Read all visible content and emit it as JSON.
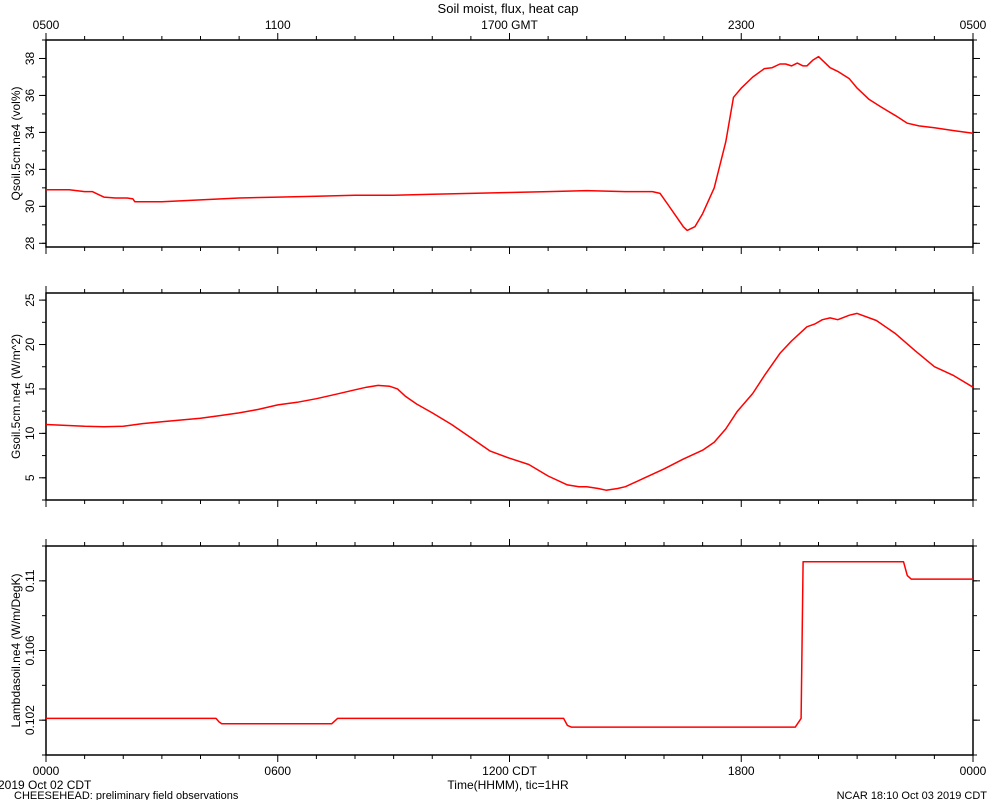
{
  "chart_data": {
    "type": "line",
    "title": "Soil moist, flux, heat cap",
    "top_axis": {
      "ticks": [
        {
          "hour": 0,
          "label": "0500"
        },
        {
          "hour": 6,
          "label": "1100"
        },
        {
          "hour": 12,
          "label": "1700 GMT"
        },
        {
          "hour": 18,
          "label": "2300"
        },
        {
          "hour": 24,
          "label": "0500"
        }
      ]
    },
    "bottom_axis": {
      "ticks": [
        {
          "hour": 0,
          "label": "0000"
        },
        {
          "hour": 6,
          "label": "0600"
        },
        {
          "hour": 12,
          "label": "1200 CDT"
        },
        {
          "hour": 18,
          "label": "1800"
        },
        {
          "hour": 24,
          "label": "0000"
        }
      ],
      "xlabel": "Time(HHMM), tic=1HR"
    },
    "xlim_hours": [
      0,
      24
    ],
    "footer": {
      "left_date": "2019 Oct 02 CDT",
      "left_note": "CHEESEHEAD: preliminary field observations",
      "right_note": "NCAR 18:10 Oct 03 2019 CDT"
    },
    "line_color": "#ff0000",
    "panels": [
      {
        "ylabel": "Qsoil.5cm.ne4 (vol%)",
        "ylim": [
          27.8,
          39
        ],
        "yticks": [
          28,
          30,
          32,
          34,
          36,
          38
        ],
        "x": [
          0,
          0.6,
          1.0,
          1.2,
          1.4,
          1.5,
          1.8,
          2.1,
          2.25,
          2.3,
          2.6,
          3,
          4,
          5,
          6,
          7,
          8,
          9,
          10,
          11,
          12,
          13,
          14,
          15,
          15.7,
          15.9,
          16.1,
          16.3,
          16.5,
          16.6,
          16.8,
          17.0,
          17.3,
          17.6,
          17.8,
          18.0,
          18.3,
          18.6,
          18.8,
          19.0,
          19.15,
          19.3,
          19.45,
          19.6,
          19.7,
          19.85,
          20.0,
          20.1,
          20.3,
          20.5,
          20.8,
          21.0,
          21.3,
          21.6,
          22.0,
          22.3,
          22.6,
          23.0,
          23.5,
          24.0
        ],
        "y": [
          30.9,
          30.9,
          30.8,
          30.8,
          30.6,
          30.5,
          30.45,
          30.45,
          30.4,
          30.25,
          30.25,
          30.25,
          30.35,
          30.45,
          30.5,
          30.55,
          30.6,
          30.6,
          30.65,
          30.7,
          30.75,
          30.8,
          30.85,
          30.8,
          30.8,
          30.7,
          30.1,
          29.5,
          28.9,
          28.7,
          28.9,
          29.6,
          31.0,
          33.5,
          35.9,
          36.4,
          37.0,
          37.45,
          37.5,
          37.7,
          37.7,
          37.6,
          37.75,
          37.6,
          37.6,
          37.9,
          38.1,
          37.9,
          37.5,
          37.3,
          36.9,
          36.4,
          35.8,
          35.4,
          34.9,
          34.5,
          34.35,
          34.25,
          34.1,
          33.95
        ]
      },
      {
        "ylabel": "Gsoil.5cm.ne4 (W/m^2)",
        "ylim": [
          2.5,
          25.8
        ],
        "yticks": [
          5,
          10,
          15,
          20,
          25
        ],
        "x": [
          0,
          0.5,
          1.0,
          1.5,
          2.0,
          2.5,
          3.0,
          3.5,
          4.0,
          4.5,
          5.0,
          5.5,
          6.0,
          6.5,
          7.0,
          7.5,
          8.0,
          8.3,
          8.6,
          8.9,
          9.1,
          9.3,
          9.6,
          10.0,
          10.5,
          11.0,
          11.5,
          12.0,
          12.5,
          13.0,
          13.5,
          13.8,
          14.0,
          14.3,
          14.5,
          14.8,
          15.0,
          15.5,
          16.0,
          16.5,
          17.0,
          17.3,
          17.6,
          17.9,
          18.0,
          18.3,
          18.6,
          19.0,
          19.3,
          19.5,
          19.7,
          19.9,
          20.1,
          20.3,
          20.5,
          20.8,
          21.0,
          21.5,
          22.0,
          22.5,
          23.0,
          23.5,
          24.0
        ],
        "y": [
          11.0,
          10.9,
          10.8,
          10.75,
          10.8,
          11.1,
          11.3,
          11.5,
          11.7,
          12.0,
          12.3,
          12.7,
          13.2,
          13.5,
          13.9,
          14.4,
          14.9,
          15.2,
          15.4,
          15.3,
          15.0,
          14.2,
          13.3,
          12.3,
          11.0,
          9.5,
          8.0,
          7.2,
          6.5,
          5.2,
          4.2,
          4.0,
          4.0,
          3.8,
          3.6,
          3.8,
          4.0,
          5.0,
          6.0,
          7.1,
          8.1,
          9.0,
          10.5,
          12.5,
          13.0,
          14.5,
          16.5,
          19.0,
          20.4,
          21.2,
          22.0,
          22.3,
          22.8,
          23.0,
          22.8,
          23.3,
          23.5,
          22.7,
          21.2,
          19.3,
          17.5,
          16.5,
          15.2
        ]
      },
      {
        "ylabel": "Lambdasoil.ne4 (W/m/DegK)",
        "ylim": [
          0.1,
          0.112
        ],
        "yticks": [
          0.102,
          0.106,
          0.11
        ],
        "x": [
          0,
          4.4,
          4.48,
          4.55,
          7.4,
          7.55,
          7.6,
          13.4,
          13.5,
          13.6,
          19.4,
          19.55,
          19.6,
          22.2,
          22.3,
          22.4,
          24
        ],
        "y": [
          0.1021,
          0.1021,
          0.1019,
          0.1018,
          0.1018,
          0.1021,
          0.1021,
          0.1021,
          0.1017,
          0.1016,
          0.1016,
          0.1021,
          0.1111,
          0.1111,
          0.1103,
          0.1101,
          0.1101
        ]
      }
    ]
  }
}
